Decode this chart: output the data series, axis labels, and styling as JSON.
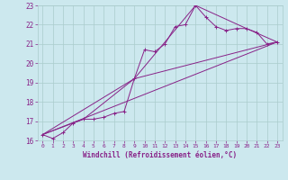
{
  "xlabel": "Windchill (Refroidissement éolien,°C)",
  "bg_color": "#cce8ee",
  "line_color": "#882288",
  "grid_color": "#aacccc",
  "xlim": [
    -0.5,
    23.5
  ],
  "ylim": [
    16,
    23
  ],
  "xticks": [
    0,
    1,
    2,
    3,
    4,
    5,
    6,
    7,
    8,
    9,
    10,
    11,
    12,
    13,
    14,
    15,
    16,
    17,
    18,
    19,
    20,
    21,
    22,
    23
  ],
  "yticks": [
    16,
    17,
    18,
    19,
    20,
    21,
    22,
    23
  ],
  "line1_x": [
    0,
    1,
    2,
    3,
    4,
    5,
    6,
    7,
    8,
    9,
    10,
    11,
    12,
    13,
    14,
    15,
    16,
    17,
    18,
    19,
    20,
    21,
    22,
    23
  ],
  "line1_y": [
    16.3,
    16.1,
    16.4,
    16.9,
    17.1,
    17.1,
    17.2,
    17.4,
    17.5,
    19.2,
    20.7,
    20.6,
    21.0,
    21.9,
    22.0,
    23.0,
    22.4,
    21.9,
    21.7,
    21.8,
    21.8,
    21.6,
    21.0,
    21.1
  ],
  "line2_x": [
    0,
    4,
    9,
    15,
    20,
    23
  ],
  "line2_y": [
    16.3,
    17.1,
    19.2,
    23.0,
    21.8,
    21.1
  ],
  "line3_x": [
    0,
    23
  ],
  "line3_y": [
    16.3,
    21.1
  ],
  "line4_x": [
    0,
    9,
    23
  ],
  "line4_y": [
    16.3,
    19.2,
    21.1
  ]
}
